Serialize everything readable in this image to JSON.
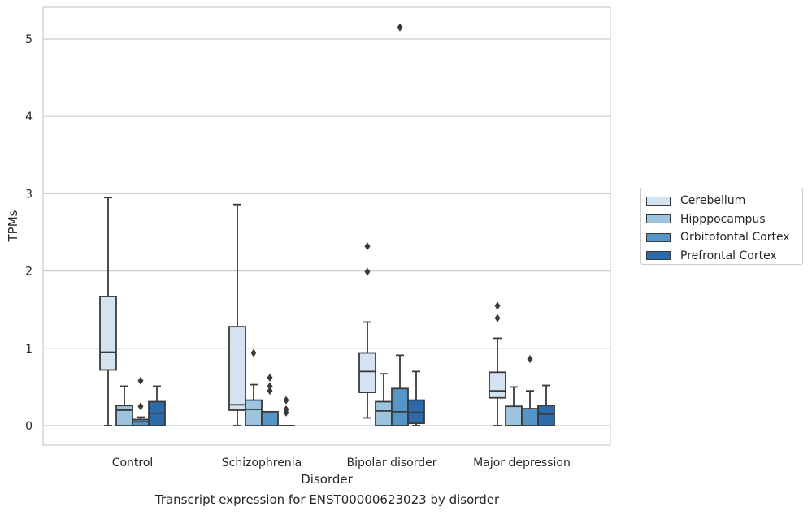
{
  "chart_data": {
    "type": "box",
    "title": "",
    "caption": "Transcript expression for ENST00000623023 by disorder",
    "xlabel": "Disorder",
    "ylabel": "TPMs",
    "ylim": [
      -0.25,
      5.42
    ],
    "yticks": [
      0,
      1,
      2,
      3,
      4,
      5
    ],
    "grid": "horizontal",
    "legend_position": "right",
    "categories": [
      "Control",
      "Schizophrenia",
      "Bipolar disorder",
      "Major depression"
    ],
    "series": [
      {
        "name": "Cerebellum",
        "color": "#d4e3f2",
        "boxes": [
          {
            "whislo": 0.0,
            "q1": 0.72,
            "med": 0.95,
            "q3": 1.67,
            "whishi": 2.95,
            "fliers": []
          },
          {
            "whislo": 0.0,
            "q1": 0.2,
            "med": 0.27,
            "q3": 1.28,
            "whishi": 2.86,
            "fliers": []
          },
          {
            "whislo": 0.1,
            "q1": 0.43,
            "med": 0.7,
            "q3": 0.94,
            "whishi": 1.34,
            "fliers": [
              1.99,
              2.32
            ]
          },
          {
            "whislo": 0.0,
            "q1": 0.36,
            "med": 0.45,
            "q3": 0.69,
            "whishi": 1.13,
            "fliers": [
              1.39,
              1.55
            ]
          }
        ]
      },
      {
        "name": "Hipppocampus",
        "color": "#9cc4de",
        "boxes": [
          {
            "whislo": 0.0,
            "q1": 0.0,
            "med": 0.2,
            "q3": 0.26,
            "whishi": 0.51,
            "fliers": []
          },
          {
            "whislo": 0.0,
            "q1": 0.0,
            "med": 0.21,
            "q3": 0.33,
            "whishi": 0.53,
            "fliers": [
              0.94
            ]
          },
          {
            "whislo": 0.0,
            "q1": 0.0,
            "med": 0.19,
            "q3": 0.31,
            "whishi": 0.67,
            "fliers": []
          },
          {
            "whislo": 0.0,
            "q1": 0.0,
            "med": 0.0,
            "q3": 0.25,
            "whishi": 0.5,
            "fliers": []
          }
        ]
      },
      {
        "name": "Orbitofontal Cortex",
        "color": "#5496c6",
        "boxes": [
          {
            "whislo": 0.0,
            "q1": 0.0,
            "med": 0.05,
            "q3": 0.08,
            "whishi": 0.11,
            "fliers": [
              0.25,
              0.58
            ]
          },
          {
            "whislo": 0.0,
            "q1": 0.0,
            "med": 0.0,
            "q3": 0.18,
            "whishi": 0.18,
            "fliers": [
              0.45,
              0.51,
              0.62
            ]
          },
          {
            "whislo": 0.0,
            "q1": 0.0,
            "med": 0.18,
            "q3": 0.48,
            "whishi": 0.91,
            "fliers": [
              5.15
            ]
          },
          {
            "whislo": 0.0,
            "q1": 0.0,
            "med": 0.0,
            "q3": 0.22,
            "whishi": 0.45,
            "fliers": [
              0.86
            ]
          }
        ]
      },
      {
        "name": "Prefrontal Cortex",
        "color": "#2c6aaa",
        "boxes": [
          {
            "whislo": 0.0,
            "q1": 0.0,
            "med": 0.16,
            "q3": 0.31,
            "whishi": 0.51,
            "fliers": []
          },
          {
            "whislo": 0.0,
            "q1": 0.0,
            "med": 0.0,
            "q3": 0.0,
            "whishi": 0.0,
            "fliers": [
              0.17,
              0.21,
              0.33
            ]
          },
          {
            "whislo": 0.0,
            "q1": 0.03,
            "med": 0.17,
            "q3": 0.33,
            "whishi": 0.7,
            "fliers": []
          },
          {
            "whislo": 0.0,
            "q1": 0.0,
            "med": 0.15,
            "q3": 0.26,
            "whishi": 0.52,
            "fliers": []
          }
        ]
      }
    ]
  }
}
